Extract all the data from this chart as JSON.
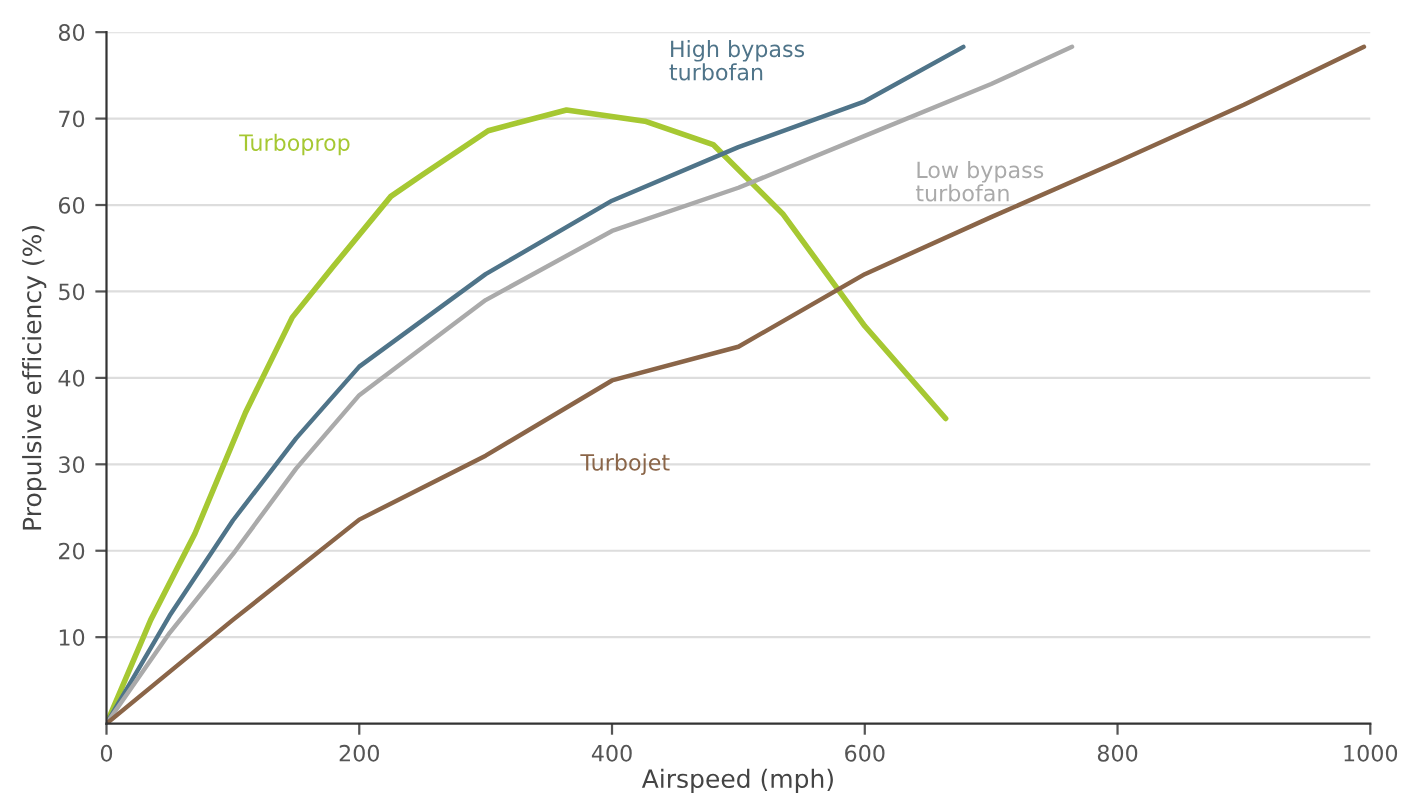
{
  "chart_data": {
    "type": "line",
    "xlabel": "Airspeed (mph)",
    "ylabel": "Propulsive efficiency (%)",
    "xlim": [
      0,
      1000
    ],
    "xticks": [
      0,
      200,
      400,
      600,
      800,
      1000
    ],
    "ylim": [
      0,
      80
    ],
    "yticks": [
      10,
      20,
      30,
      40,
      50,
      60,
      70,
      80
    ],
    "grid": "y",
    "legend": false,
    "marker": "none",
    "line_style": "solid",
    "series": [
      {
        "name": "Turboprop",
        "color": "#a6c832",
        "x": [
          0,
          35,
          70,
          110,
          147,
          180,
          225,
          250,
          302,
          364,
          426,
          480,
          535,
          600,
          664
        ],
        "values": [
          0,
          12,
          22,
          36,
          47,
          53,
          61,
          63.5,
          68.6,
          71,
          69.7,
          67,
          59,
          46,
          35.3
        ]
      },
      {
        "name": "High bypass turbofan",
        "color": "#4f7489",
        "x": [
          0,
          50,
          100,
          150,
          200,
          300,
          400,
          500,
          600,
          678
        ],
        "values": [
          0,
          12.5,
          23.5,
          33,
          41.3,
          52,
          60.5,
          66.7,
          72,
          78.3
        ]
      },
      {
        "name": "Low bypass turbofan",
        "color": "#aaaaaa",
        "x": [
          0,
          50,
          100,
          150,
          200,
          300,
          400,
          500,
          600,
          700,
          764
        ],
        "values": [
          0,
          10.5,
          19.6,
          29.5,
          38,
          49,
          57,
          62,
          68,
          74,
          78.3
        ]
      },
      {
        "name": "Turbojet",
        "color": "#8a6548",
        "x": [
          0,
          100,
          200,
          300,
          400,
          500,
          600,
          700,
          800,
          900,
          995
        ],
        "values": [
          0,
          12,
          23.6,
          31,
          39.7,
          43.6,
          52,
          58.6,
          65,
          71.6,
          78.3
        ]
      }
    ]
  }
}
